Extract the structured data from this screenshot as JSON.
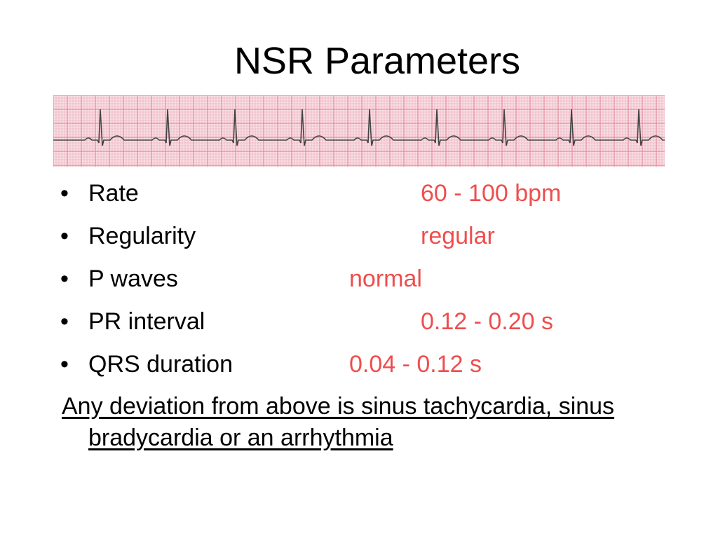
{
  "slide": {
    "title": "NSR Parameters",
    "ecg_strip": {
      "description_icon": "ecg-rhythm-strip",
      "grid_color": "#e58a9d",
      "trace_color": "#444444"
    },
    "parameters": [
      {
        "bullet": "•",
        "label": "Rate",
        "value": "60 - 100 bpm"
      },
      {
        "bullet": "•",
        "label": "Regularity",
        "value": "regular"
      },
      {
        "bullet": "•",
        "label": "P waves",
        "value": "normal"
      },
      {
        "bullet": "•",
        "label": "PR interval",
        "value": "0.12 - 0.20 s"
      },
      {
        "bullet": "•",
        "label": "QRS duration",
        "value": "0.04 - 0.12 s"
      }
    ],
    "note": "Any deviation from above is sinus tachycardia, sinus bradycardia or an arrhythmia",
    "value_color": "#ee4e4e"
  }
}
